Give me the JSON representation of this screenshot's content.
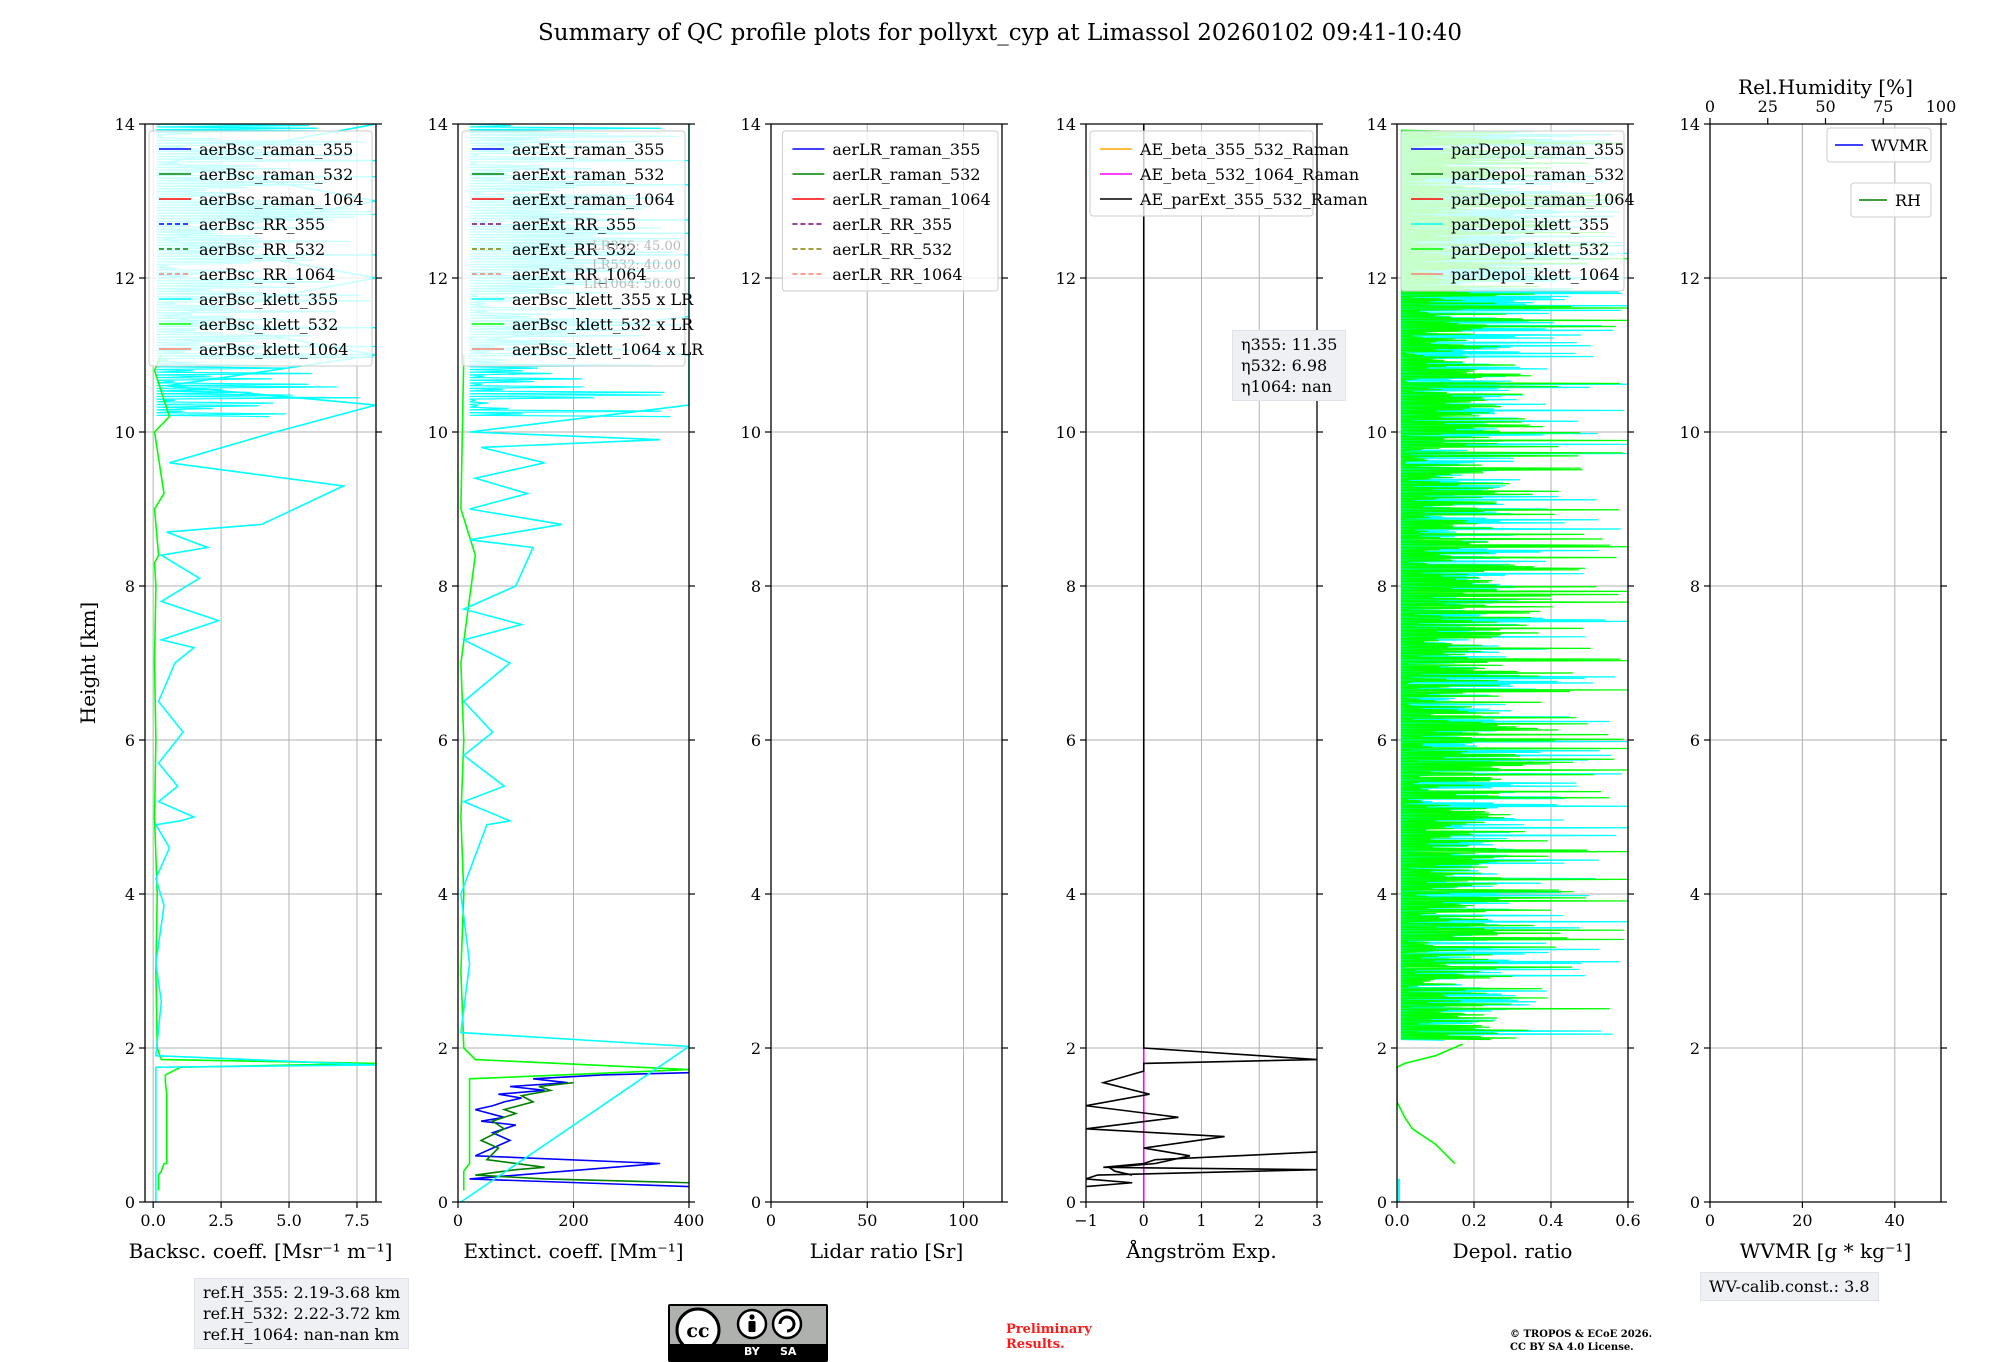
{
  "title": "Summary of QC profile plots for pollyxt_cyp at Limassol 20260102 09:41-10:40",
  "colors": {
    "blue": "#0000ff",
    "green": "#008000",
    "red": "#ff0000",
    "cyan": "#00ffff",
    "lime": "#00ff00",
    "salmon": "#fa8072",
    "purple": "#800080",
    "olive": "#808000",
    "orange": "#ffa500",
    "magenta": "#ff00ff",
    "black": "#000000"
  },
  "chart_data": [
    {
      "type": "line",
      "id": "backscatter",
      "xlabel": "Backsc. coeff. [Msr⁻¹ m⁻¹]",
      "ylabel": "Height [km]",
      "xlim": [
        -0.3,
        8.2
      ],
      "ylim": [
        0,
        14
      ],
      "xticks": [
        0,
        2.5,
        5,
        7.5
      ],
      "xtick_labels": [
        "0.0",
        "2.5",
        "5.0",
        "7.5"
      ],
      "yticks": [
        0,
        2,
        4,
        6,
        8,
        10,
        12,
        14
      ],
      "ytick_labels": [
        "0",
        "2",
        "4",
        "6",
        "8",
        "10",
        "12",
        "14"
      ],
      "grid": true,
      "legend": {
        "placement": "top-right",
        "entries": [
          {
            "label": "aerBsc_raman_355",
            "color": "#0000ff",
            "dash": false
          },
          {
            "label": "aerBsc_raman_532",
            "color": "#008000",
            "dash": false
          },
          {
            "label": "aerBsc_raman_1064",
            "color": "#ff0000",
            "dash": false
          },
          {
            "label": "aerBsc_RR_355",
            "color": "#0000ff",
            "dash": true
          },
          {
            "label": "aerBsc_RR_532",
            "color": "#008000",
            "dash": true
          },
          {
            "label": "aerBsc_RR_1064",
            "color": "#fa8072",
            "dash": true
          },
          {
            "label": "aerBsc_klett_355",
            "color": "#00ffff",
            "dash": false
          },
          {
            "label": "aerBsc_klett_532",
            "color": "#00ff00",
            "dash": false
          },
          {
            "label": "aerBsc_klett_1064",
            "color": "#fa8072",
            "dash": false
          }
        ]
      },
      "series": [
        {
          "name": "aerBsc_klett_532",
          "color": "#00ff00",
          "x": [
            0.2,
            0.2,
            0.3,
            0.4,
            0.5,
            0.5,
            0.45,
            0.45,
            1.0,
            8.2,
            0.3,
            0.15,
            0.1,
            0.15,
            0.05,
            0.1,
            0.05,
            0.1,
            0.05,
            0.2,
            0.05,
            0.4,
            0.05,
            0.6,
            0.05,
            0.3
          ],
          "y": [
            0.15,
            0.35,
            0.4,
            0.5,
            0.5,
            1.4,
            1.55,
            1.65,
            1.75,
            1.8,
            1.85,
            2.0,
            3.0,
            4.0,
            5.0,
            6.0,
            7.0,
            8.0,
            8.3,
            8.4,
            9.0,
            9.2,
            10.0,
            10.2,
            10.8,
            11.0
          ]
        },
        {
          "name": "aerBsc_klett_355",
          "color": "#00ffff",
          "x": [
            0.1,
            0.1,
            8.2,
            0.1,
            0.3,
            0.1,
            0.4,
            0.1,
            0.6,
            0.1,
            1.0,
            1.5,
            0.2,
            0.9,
            0.2,
            1.1,
            0.2,
            0.8,
            1.5,
            0.3,
            2.4,
            0.3,
            1.7,
            0.3,
            2.0,
            0.5,
            4.0,
            7.0,
            0.6,
            4.5,
            8.2,
            0.5,
            8.2,
            0.5,
            8.2,
            0.4,
            8.2,
            0.5,
            8.2
          ],
          "y": [
            0.0,
            1.75,
            1.78,
            1.9,
            2.6,
            3.1,
            3.85,
            4.2,
            4.6,
            4.9,
            4.95,
            5.0,
            5.2,
            5.4,
            5.7,
            6.1,
            6.5,
            7.0,
            7.2,
            7.3,
            7.55,
            7.8,
            8.1,
            8.4,
            8.5,
            8.7,
            8.8,
            9.3,
            9.6,
            10.0,
            10.35,
            10.6,
            11.0,
            11.5,
            12.0,
            12.5,
            13.0,
            13.5,
            14.0
          ]
        }
      ]
    },
    {
      "type": "line",
      "id": "extinction",
      "xlabel": "Extinct. coeff. [Mm⁻¹]",
      "xlim": [
        0,
        400
      ],
      "ylim": [
        0,
        14
      ],
      "xticks": [
        0,
        200,
        400
      ],
      "xtick_labels": [
        "0",
        "200",
        "400"
      ],
      "yticks": [
        0,
        2,
        4,
        6,
        8,
        10,
        12,
        14
      ],
      "ytick_labels": [
        "0",
        "2",
        "4",
        "6",
        "8",
        "10",
        "12",
        "14"
      ],
      "grid": true,
      "legend": {
        "placement": "top-right",
        "entries": [
          {
            "label": "aerExt_raman_355",
            "color": "#0000ff",
            "dash": false
          },
          {
            "label": "aerExt_raman_532",
            "color": "#008000",
            "dash": false
          },
          {
            "label": "aerExt_raman_1064",
            "color": "#ff0000",
            "dash": false
          },
          {
            "label": "aerExt_RR_355",
            "color": "#800080",
            "dash": true
          },
          {
            "label": "aerExt_RR_532",
            "color": "#808000",
            "dash": true
          },
          {
            "label": "aerExt_RR_1064",
            "color": "#fa8072",
            "dash": true
          },
          {
            "label": "aerBsc_klett_355 x LR",
            "color": "#00ffff",
            "dash": false
          },
          {
            "label": "aerBsc_klett_532 x LR",
            "color": "#00ff00",
            "dash": false
          },
          {
            "label": "aerBsc_klett_1064 x LR",
            "color": "#fa8072",
            "dash": false
          }
        ]
      },
      "lr_labels": [
        "LR355: 45.00",
        "LR532: 40.00",
        "LR1064: 50.00"
      ],
      "series": [
        {
          "name": "aerExt_raman_355",
          "color": "#0000ff",
          "x": [
            400,
            20,
            350,
            30,
            60,
            90,
            60,
            100,
            40,
            80,
            30,
            60,
            80,
            110,
            70,
            150,
            90,
            190,
            130,
            250,
            400
          ],
          "y": [
            0.2,
            0.3,
            0.5,
            0.6,
            0.7,
            0.8,
            0.9,
            1.0,
            1.05,
            1.1,
            1.2,
            1.25,
            1.3,
            1.35,
            1.4,
            1.45,
            1.5,
            1.55,
            1.6,
            1.65,
            1.68
          ]
        },
        {
          "name": "aerExt_raman_532",
          "color": "#008000",
          "x": [
            400,
            150,
            30,
            100,
            150,
            50,
            70,
            40,
            80,
            60,
            100,
            80,
            130,
            110,
            160,
            140,
            200
          ],
          "y": [
            0.25,
            0.3,
            0.35,
            0.42,
            0.45,
            0.55,
            0.7,
            0.8,
            0.95,
            1.05,
            1.15,
            1.2,
            1.3,
            1.38,
            1.45,
            1.5,
            1.55
          ]
        },
        {
          "name": "aerBsc_klett_532 x LR",
          "color": "#00ff00",
          "x": [
            10,
            10,
            20,
            20,
            400,
            30,
            10,
            5,
            10,
            5,
            10,
            5,
            30,
            5,
            10
          ],
          "y": [
            0.15,
            0.4,
            0.5,
            1.6,
            1.72,
            1.85,
            2.0,
            3.0,
            4.0,
            5.0,
            6.0,
            7.0,
            8.4,
            9.0,
            11.0
          ]
        },
        {
          "name": "aerBsc_klett_355 x LR",
          "color": "#00ffff",
          "x": [
            5,
            400,
            5,
            20,
            5,
            50,
            90,
            10,
            80,
            10,
            60,
            10,
            90,
            10,
            110,
            10,
            100,
            130,
            20,
            180,
            20,
            120,
            30,
            150,
            40,
            350,
            20,
            400,
            400,
            50,
            400,
            400,
            400,
            400,
            400
          ],
          "y": [
            0.0,
            2.02,
            2.2,
            3.1,
            4.0,
            4.9,
            4.95,
            5.2,
            5.4,
            5.8,
            6.1,
            6.5,
            7.0,
            7.3,
            7.5,
            7.7,
            8.0,
            8.5,
            8.6,
            8.8,
            9.0,
            9.2,
            9.4,
            9.6,
            9.8,
            9.9,
            10.0,
            10.35,
            11.0,
            11.2,
            11.5,
            12.0,
            12.5,
            13.0,
            14.0
          ]
        }
      ]
    },
    {
      "type": "line",
      "id": "lidar_ratio",
      "xlabel": "Lidar ratio [Sr]",
      "xlim": [
        0,
        120
      ],
      "ylim": [
        0,
        14
      ],
      "xticks": [
        0,
        50,
        100
      ],
      "xtick_labels": [
        "0",
        "50",
        "100"
      ],
      "yticks": [
        0,
        2,
        4,
        6,
        8,
        10,
        12,
        14
      ],
      "ytick_labels": [
        "0",
        "2",
        "4",
        "6",
        "8",
        "10",
        "12",
        "14"
      ],
      "grid": true,
      "legend": {
        "placement": "top-right",
        "entries": [
          {
            "label": "aerLR_raman_355",
            "color": "#0000ff",
            "dash": false
          },
          {
            "label": "aerLR_raman_532",
            "color": "#008000",
            "dash": false
          },
          {
            "label": "aerLR_raman_1064",
            "color": "#ff0000",
            "dash": false
          },
          {
            "label": "aerLR_RR_355",
            "color": "#800080",
            "dash": true
          },
          {
            "label": "aerLR_RR_532",
            "color": "#808000",
            "dash": true
          },
          {
            "label": "aerLR_RR_1064",
            "color": "#fa8072",
            "dash": true
          }
        ]
      },
      "series": []
    },
    {
      "type": "line",
      "id": "angstrom",
      "xlabel": "Ångström Exp.",
      "xlim": [
        -1,
        3
      ],
      "ylim": [
        0,
        14
      ],
      "xticks": [
        -1,
        0,
        1,
        2,
        3
      ],
      "xtick_labels": [
        "−1",
        "0",
        "1",
        "2",
        "3"
      ],
      "yticks": [
        0,
        2,
        4,
        6,
        8,
        10,
        12,
        14
      ],
      "ytick_labels": [
        "0",
        "2",
        "4",
        "6",
        "8",
        "10",
        "12",
        "14"
      ],
      "grid": true,
      "legend": {
        "placement": "top-right",
        "entries": [
          {
            "label": "AE_beta_355_532_Raman",
            "color": "#ffa500",
            "dash": false
          },
          {
            "label": "AE_beta_532_1064_Raman",
            "color": "#ff00ff",
            "dash": false
          },
          {
            "label": "AE_parExt_355_532_Raman",
            "color": "#000000",
            "dash": false
          }
        ]
      },
      "series": [
        {
          "name": "AE_beta_532_1064_Raman",
          "color": "#ff00ff",
          "x": [
            0,
            0
          ],
          "y": [
            0.0,
            2.0
          ]
        },
        {
          "name": "AE_parExt_355_532_Raman",
          "color": "#000000",
          "x": [
            0,
            0,
            3.0,
            0,
            0,
            -0.7,
            0.1,
            -1.0,
            0.6,
            -1.0,
            1.4,
            0.0,
            0.8,
            0.2,
            -0.6,
            -0.5,
            -0.2
          ],
          "y": [
            14.0,
            2.0,
            1.85,
            1.8,
            1.7,
            1.55,
            1.4,
            1.25,
            1.1,
            0.95,
            0.85,
            0.7,
            0.6,
            0.5,
            0.45,
            0.4,
            0.35
          ]
        },
        {
          "name": "AE_parExt_355_532_Raman (lower)",
          "color": "#000000",
          "x": [
            3.0,
            0.2,
            0.0,
            -0.7,
            3.0,
            -0.8,
            -1.0,
            -0.2,
            -1.0
          ],
          "y": [
            0.65,
            0.55,
            0.5,
            0.45,
            0.42,
            0.35,
            0.3,
            0.25,
            0.2
          ]
        }
      ]
    },
    {
      "type": "line",
      "id": "depol",
      "xlabel": "Depol. ratio",
      "xlim": [
        0,
        0.6
      ],
      "ylim": [
        0,
        14
      ],
      "xticks": [
        0,
        0.2,
        0.4,
        0.6
      ],
      "xtick_labels": [
        "0.0",
        "0.2",
        "0.4",
        "0.6"
      ],
      "yticks": [
        0,
        2,
        4,
        6,
        8,
        10,
        12,
        14
      ],
      "ytick_labels": [
        "0",
        "2",
        "4",
        "6",
        "8",
        "10",
        "12",
        "14"
      ],
      "grid": true,
      "legend": {
        "placement": "top-right",
        "entries": [
          {
            "label": "parDepol_raman_355",
            "color": "#0000ff",
            "dash": false
          },
          {
            "label": "parDepol_raman_532",
            "color": "#008000",
            "dash": false
          },
          {
            "label": "parDepol_raman_1064",
            "color": "#ff0000",
            "dash": false
          },
          {
            "label": "parDepol_klett_355",
            "color": "#00ffff",
            "dash": false
          },
          {
            "label": "parDepol_klett_532",
            "color": "#00ff00",
            "dash": false
          },
          {
            "label": "parDepol_klett_1064",
            "color": "#fa8072",
            "dash": false
          }
        ]
      },
      "series": [
        {
          "name": "parDepol_klett_532",
          "color": "#00ff00",
          "x": [
            0.15,
            0.14,
            0.1,
            0.04,
            0.02,
            0.0,
            0.0,
            0.02,
            0.1,
            0.17
          ],
          "y": [
            0.5,
            0.55,
            0.75,
            0.95,
            1.1,
            1.3,
            1.75,
            1.8,
            1.9,
            2.05
          ]
        }
      ]
    },
    {
      "type": "line",
      "id": "wvmr",
      "xlabel": "WVMR [g * kg⁻¹]",
      "xlim": [
        0,
        50
      ],
      "ylim": [
        0,
        14
      ],
      "xticks": [
        0,
        20,
        40
      ],
      "xtick_labels": [
        "0",
        "20",
        "40"
      ],
      "yticks": [
        0,
        2,
        4,
        6,
        8,
        10,
        12,
        14
      ],
      "ytick_labels": [
        "0",
        "2",
        "4",
        "6",
        "8",
        "10",
        "12",
        "14"
      ],
      "grid": true,
      "top_axis": {
        "label": "Rel.Humidity [%]",
        "xlim": [
          0,
          100
        ],
        "xticks": [
          0,
          25,
          50,
          75,
          100
        ],
        "xtick_labels": [
          "0",
          "25",
          "50",
          "75",
          "100"
        ]
      },
      "legend": {
        "placement": "top-right",
        "entries": [
          {
            "label": "WVMR",
            "color": "#0000ff",
            "dash": false
          },
          {
            "label": "RH",
            "color": "#008000",
            "dash": false
          }
        ]
      },
      "series": []
    }
  ],
  "annotations": {
    "eta": [
      "η355: 11.35",
      "η532: 6.98",
      "η1064: nan"
    ],
    "ref_heights": [
      "ref.H_355: 2.19-3.68 km",
      "ref.H_532: 2.22-3.72 km",
      "ref.H_1064: nan-nan km"
    ],
    "wv_calib": "WV-calib.const.: 3.8",
    "prelim": [
      "Preliminary",
      "Results."
    ],
    "copyright": [
      "© TROPOS & ECoE 2026.",
      "CC BY SA 4.0 License."
    ],
    "cc_badge": {
      "cc": "cc",
      "by": "BY",
      "sa": "SA"
    }
  }
}
